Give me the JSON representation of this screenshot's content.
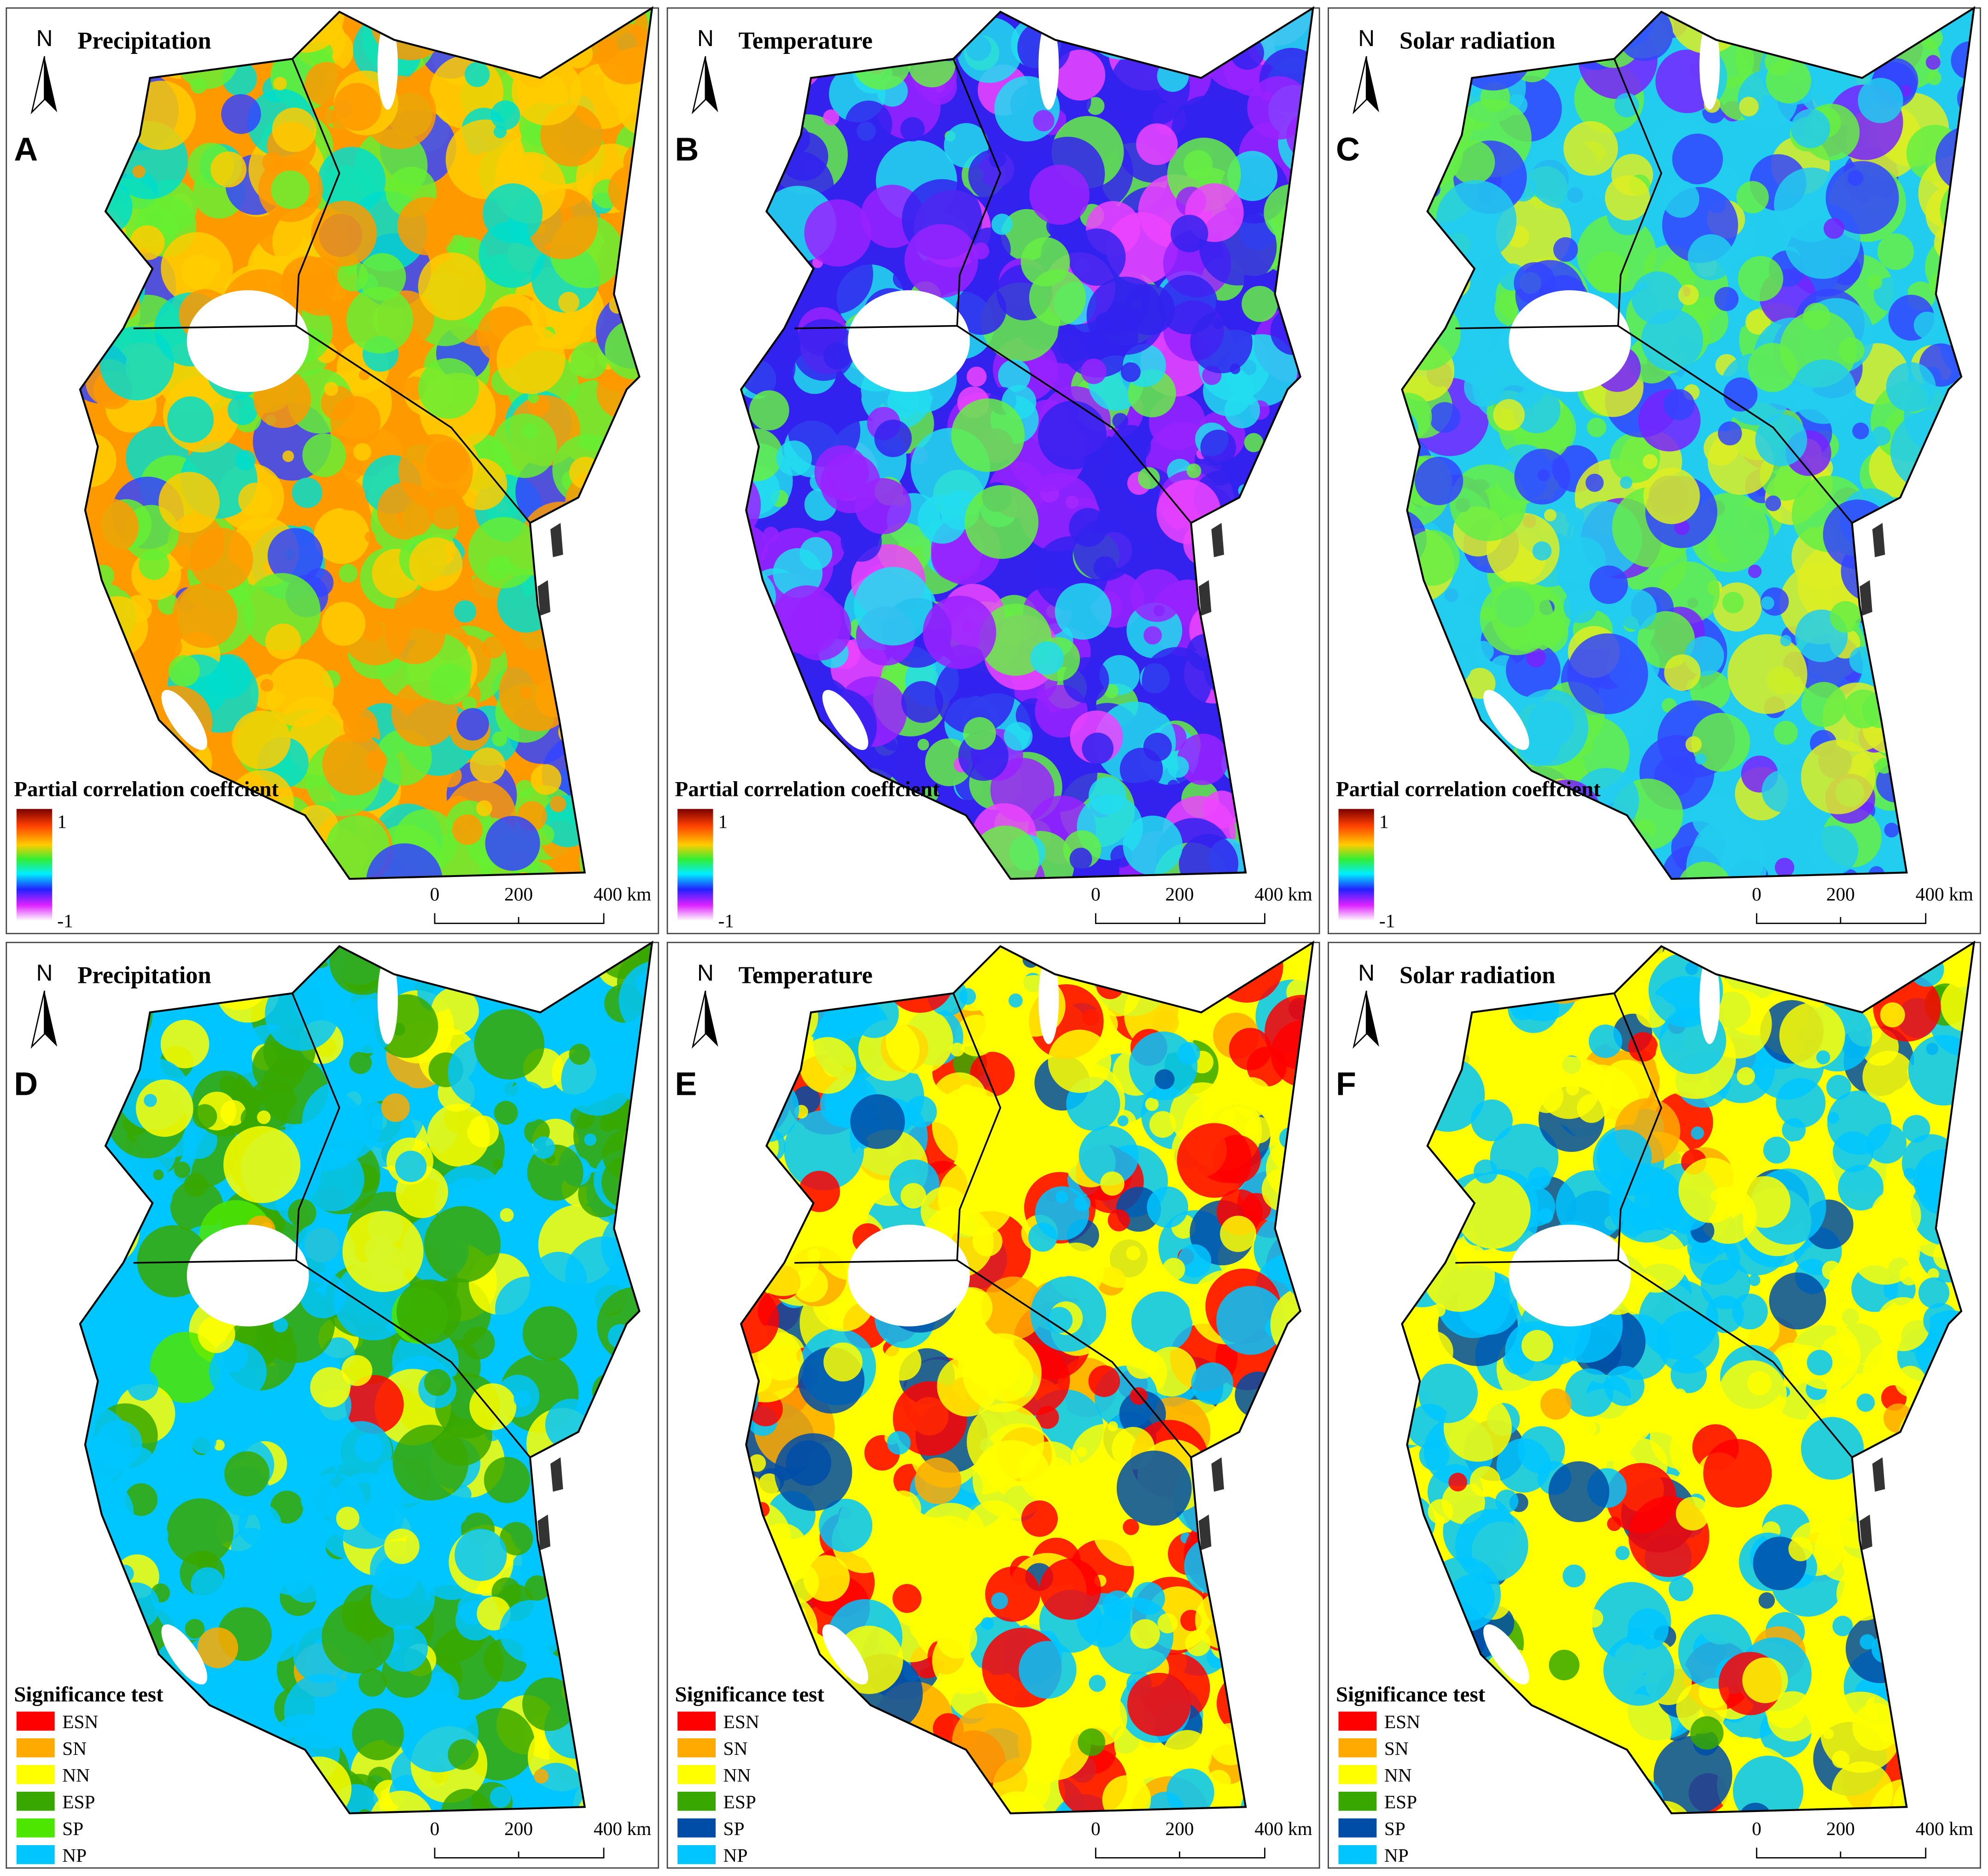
{
  "panels": [
    {
      "letter": "A",
      "title": "Precipitation",
      "north": "N",
      "kind": "correlation",
      "legend": {
        "title": "Partial correlation coeffcient",
        "max": "1",
        "min": "-1"
      },
      "scale": [
        "0",
        "200",
        "400 km"
      ]
    },
    {
      "letter": "B",
      "title": "Temperature",
      "north": "N",
      "kind": "correlation",
      "legend": {
        "title": "Partial correlation coeffcient",
        "max": "1",
        "min": "-1"
      },
      "scale": [
        "0",
        "200",
        "400 km"
      ]
    },
    {
      "letter": "C",
      "title": "Solar radiation",
      "north": "N",
      "kind": "correlation",
      "legend": {
        "title": "Partial correlation coeffcient",
        "max": "1",
        "min": "-1"
      },
      "scale": [
        "0",
        "200",
        "400 km"
      ]
    },
    {
      "letter": "D",
      "title": "Precipitation",
      "north": "N",
      "kind": "significance",
      "legend": {
        "title": "Significance test",
        "items": [
          {
            "label": "ESN",
            "color": "#ff0000"
          },
          {
            "label": "SN",
            "color": "#ffaa00"
          },
          {
            "label": "NN",
            "color": "#ffff00"
          },
          {
            "label": "ESP",
            "color": "#38a800"
          },
          {
            "label": "SP",
            "color": "#4ce600"
          },
          {
            "label": "NP",
            "color": "#00c5ff"
          }
        ]
      },
      "scale": [
        "0",
        "200",
        "400 km"
      ]
    },
    {
      "letter": "E",
      "title": "Temperature",
      "north": "N",
      "kind": "significance",
      "legend": {
        "title": "Significance test",
        "items": [
          {
            "label": "ESN",
            "color": "#ff0000"
          },
          {
            "label": "SN",
            "color": "#ffaa00"
          },
          {
            "label": "NN",
            "color": "#ffff00"
          },
          {
            "label": "ESP",
            "color": "#38a800"
          },
          {
            "label": "SP",
            "color": "#004da8"
          },
          {
            "label": "NP",
            "color": "#00c5ff"
          }
        ]
      },
      "scale": [
        "0",
        "200",
        "400 km"
      ]
    },
    {
      "letter": "F",
      "title": "Solar radiation",
      "north": "N",
      "kind": "significance",
      "legend": {
        "title": "Significance test",
        "items": [
          {
            "label": "ESN",
            "color": "#ff0000"
          },
          {
            "label": "SN",
            "color": "#ffaa00"
          },
          {
            "label": "NN",
            "color": "#ffff00"
          },
          {
            "label": "ESP",
            "color": "#38a800"
          },
          {
            "label": "SP",
            "color": "#004da8"
          },
          {
            "label": "NP",
            "color": "#00c5ff"
          }
        ]
      },
      "scale": [
        "0",
        "200",
        "400 km"
      ]
    }
  ]
}
